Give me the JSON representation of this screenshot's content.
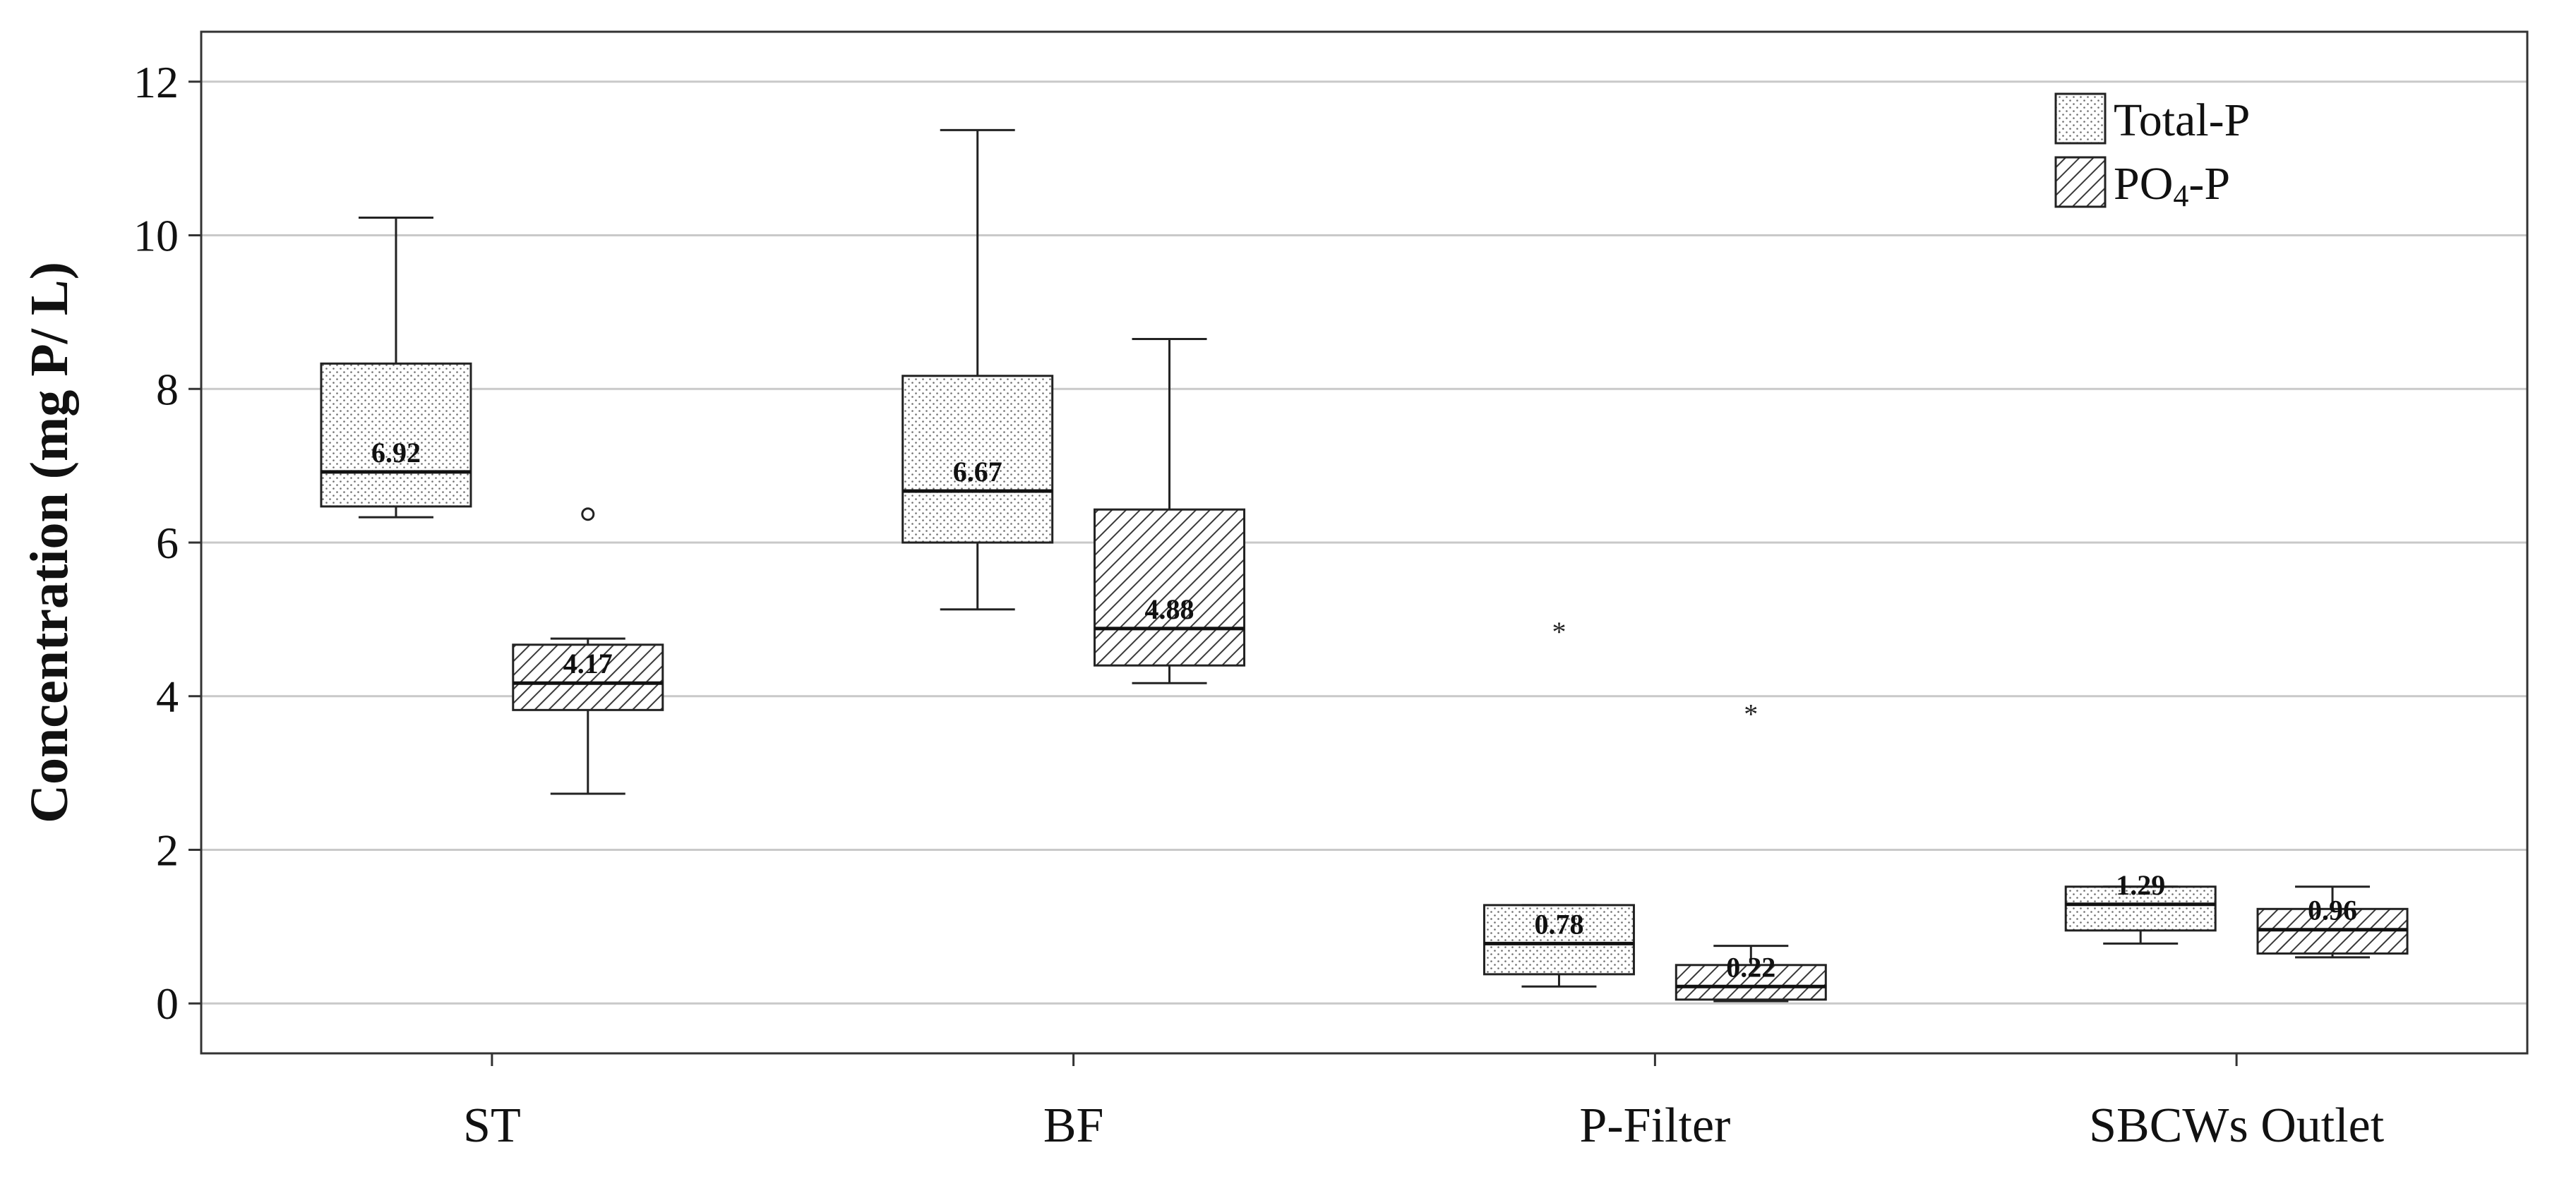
{
  "chart_data": {
    "type": "boxplot",
    "title": "",
    "xlabel": "",
    "ylabel": "Concentration (mg P/ L)",
    "ylim": [
      -0.65,
      12.65
    ],
    "yticks": [
      0,
      2,
      4,
      6,
      8,
      10,
      12
    ],
    "grid": "horizontal",
    "legend_position": "top-right",
    "categories": [
      "ST",
      "BF",
      "P-Filter",
      "SBCWs Outlet"
    ],
    "series": [
      {
        "name": "Total-P",
        "pattern": "dots",
        "boxes": [
          {
            "category": "ST",
            "whisker_low": 6.33,
            "q1": 6.47,
            "median": 6.92,
            "q3": 8.33,
            "whisker_high": 10.23,
            "median_label": "6.92",
            "outliers": [],
            "extremes": []
          },
          {
            "category": "BF",
            "whisker_low": 5.13,
            "q1": 6.0,
            "median": 6.67,
            "q3": 8.17,
            "whisker_high": 11.37,
            "median_label": "6.67",
            "outliers": [],
            "extremes": []
          },
          {
            "category": "P-Filter",
            "whisker_low": 0.22,
            "q1": 0.38,
            "median": 0.78,
            "q3": 1.28,
            "whisker_high": 1.28,
            "median_label": "0.78",
            "outliers": [],
            "extremes": [
              4.87
            ]
          },
          {
            "category": "SBCWs Outlet",
            "whisker_low": 0.78,
            "q1": 0.95,
            "median": 1.29,
            "q3": 1.52,
            "whisker_high": 1.52,
            "median_label": "1.29",
            "outliers": [],
            "extremes": []
          }
        ]
      },
      {
        "name": "PO4-P",
        "legend_main": "PO",
        "legend_sub": "4",
        "legend_suffix": "-P",
        "pattern": "hatch",
        "boxes": [
          {
            "category": "ST",
            "whisker_low": 2.73,
            "q1": 3.82,
            "median": 4.17,
            "q3": 4.67,
            "whisker_high": 4.75,
            "median_label": "4.17",
            "outliers": [
              6.37
            ],
            "extremes": []
          },
          {
            "category": "BF",
            "whisker_low": 4.17,
            "q1": 4.4,
            "median": 4.88,
            "q3": 6.43,
            "whisker_high": 8.65,
            "median_label": "4.88",
            "outliers": [],
            "extremes": []
          },
          {
            "category": "P-Filter",
            "whisker_low": 0.03,
            "q1": 0.05,
            "median": 0.22,
            "q3": 0.5,
            "whisker_high": 0.75,
            "median_label": "0.22",
            "outliers": [],
            "extremes": [
              3.8
            ]
          },
          {
            "category": "SBCWs Outlet",
            "whisker_low": 0.6,
            "q1": 0.65,
            "median": 0.96,
            "q3": 1.23,
            "whisker_high": 1.52,
            "median_label": "0.96",
            "outliers": [],
            "extremes": []
          }
        ]
      }
    ]
  }
}
